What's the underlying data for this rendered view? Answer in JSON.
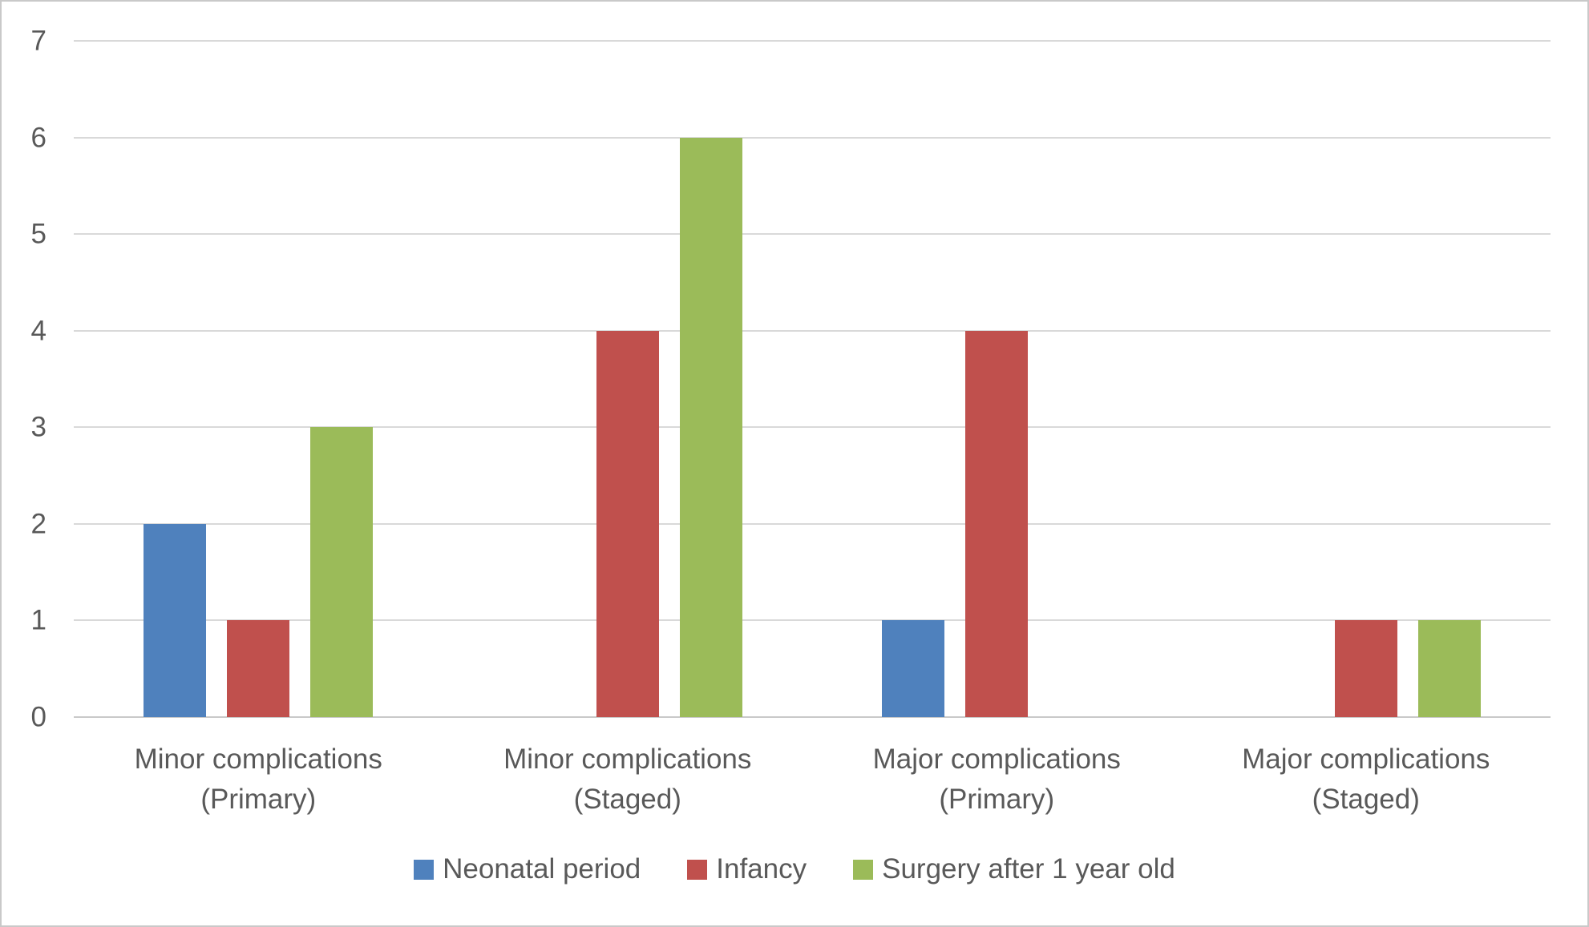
{
  "chart_data": {
    "type": "bar",
    "title": "",
    "categories": [
      "Minor complications (Primary)",
      "Minor complications (Staged)",
      "Major complications (Primary)",
      "Major complications (Staged)"
    ],
    "series": [
      {
        "name": "Neonatal period",
        "color": "#4F81BD",
        "values": [
          2,
          0,
          1,
          0
        ]
      },
      {
        "name": "Infancy",
        "color": "#C0504D",
        "values": [
          1,
          4,
          4,
          1
        ]
      },
      {
        "name": "Surgery after 1 year old",
        "color": "#9BBB59",
        "values": [
          3,
          6,
          0,
          1
        ]
      }
    ],
    "ylim": [
      0,
      7
    ],
    "yticks": [
      0,
      1,
      2,
      3,
      4,
      5,
      6,
      7
    ],
    "grid": "horizontal",
    "legend_position": "bottom",
    "colors": {
      "gridline": "#D9D9D9",
      "axis_line": "#C9C9C9",
      "tick_text": "#595959",
      "background": "#FFFFFF",
      "border": "#C9C9C9"
    }
  }
}
